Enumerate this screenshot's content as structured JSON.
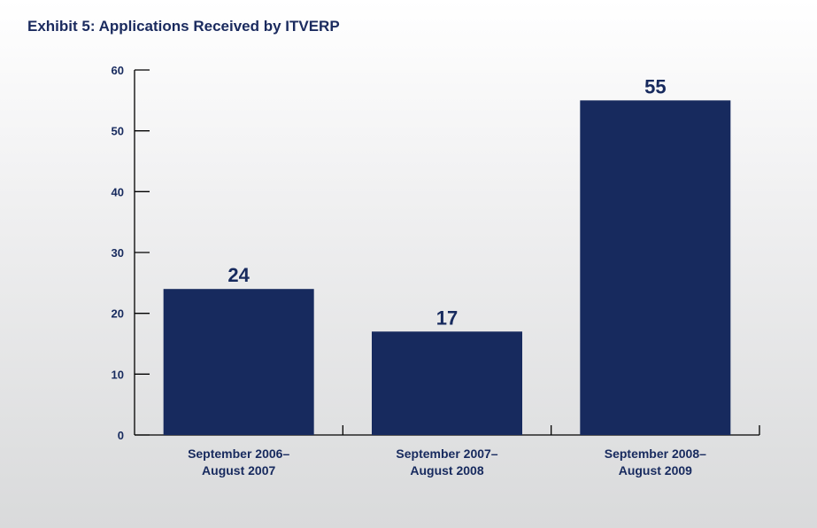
{
  "chart_data": {
    "type": "bar",
    "title": "Exhibit 5: Applications Received by ITVERP",
    "categories": [
      [
        "September 2006–",
        "August 2007"
      ],
      [
        "September 2007–",
        "August 2008"
      ],
      [
        "September 2008–",
        "August 2009"
      ]
    ],
    "values": [
      24,
      17,
      55
    ],
    "data_labels": [
      "24",
      "17",
      "55"
    ],
    "yticks": [
      0,
      10,
      20,
      30,
      40,
      50,
      60
    ],
    "ylim": [
      0,
      60
    ],
    "xlabel": "",
    "ylabel": "",
    "grid": false,
    "colors": {
      "bar": "#172a5e",
      "axis": "#000000",
      "text": "#172a5e"
    }
  }
}
